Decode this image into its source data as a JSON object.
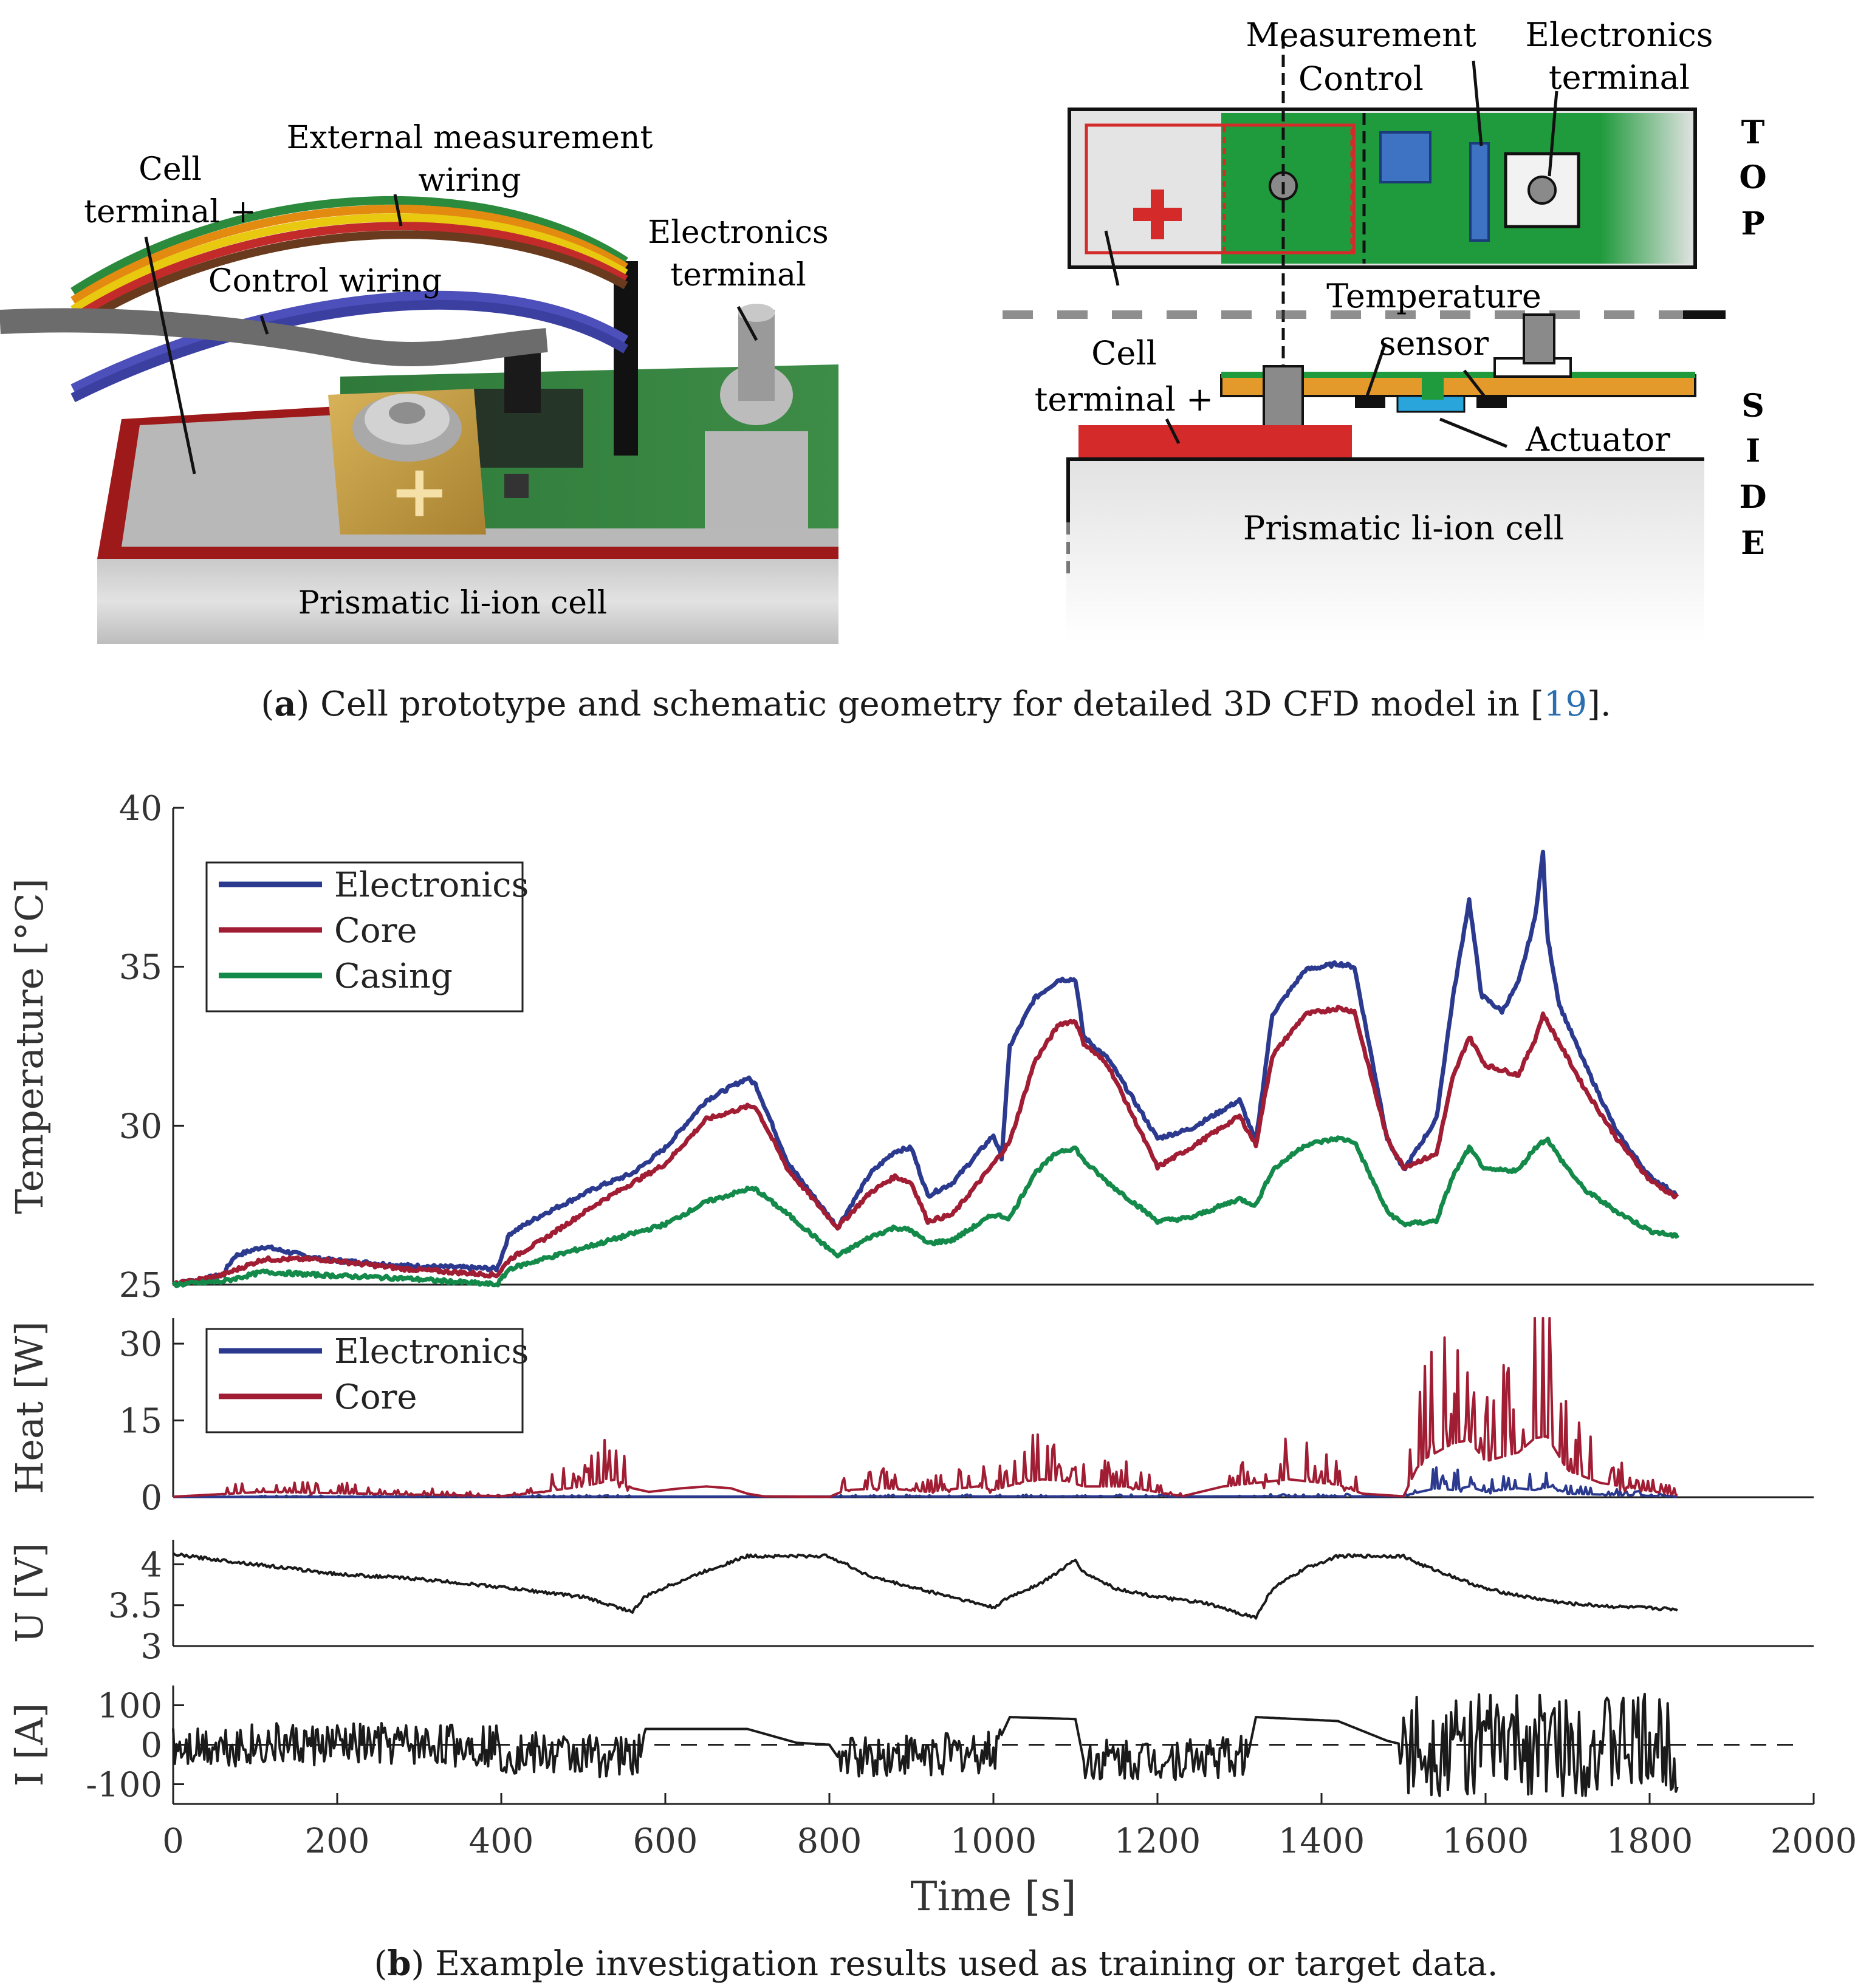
{
  "photo": {
    "labels": {
      "cell_terminal": [
        "Cell",
        "terminal +"
      ],
      "external_wiring": [
        "External measurement",
        "wiring"
      ],
      "control_wiring": "Control wiring",
      "electronics_terminal": [
        "Electronics",
        "terminal"
      ],
      "cell": "Prismatic li-ion cell"
    }
  },
  "schematic": {
    "labels": {
      "measurement": "Measurement",
      "control": "Control",
      "electronics_terminal": [
        "Electronics",
        "terminal"
      ],
      "temperature_sensor": [
        "Temperature",
        "sensor"
      ],
      "cell_terminal": [
        "Cell",
        "terminal +"
      ],
      "actuator": "Actuator",
      "cell": "Prismatic li-ion cell",
      "top_letters": [
        "T",
        "O",
        "P"
      ],
      "side_letters": [
        "S",
        "I",
        "D",
        "E"
      ]
    }
  },
  "caption_a": {
    "label": "a",
    "text": " Cell prototype and schematic geometry for detailed 3D CFD model in [",
    "ref": "19",
    "end": "]."
  },
  "caption_b": {
    "label": "b",
    "text": " Example investigation results used as training or target data."
  },
  "colors": {
    "electronics": "#2b3a8f",
    "core": "#a11d34",
    "casing": "#13894a",
    "signal": "#1a1a1a",
    "board": "#1f9a3c",
    "copper": "#e39a2a",
    "terminal_red": "#d42a2a",
    "chip_blue": "#3e73c4",
    "actuator_blue": "#2aa5dc"
  },
  "chart_data": [
    {
      "type": "line",
      "ylabel": "Temperature [°C]",
      "ylim": [
        25,
        40
      ],
      "yticks": [
        25,
        30,
        35,
        40
      ],
      "legend_position": "top-left",
      "series": [
        {
          "name": "Electronics",
          "x": [
            0,
            60,
            75,
            110,
            180,
            280,
            395,
            410,
            450,
            520,
            560,
            600,
            650,
            700,
            710,
            750,
            810,
            850,
            880,
            900,
            920,
            950,
            1000,
            1010,
            1020,
            1050,
            1080,
            1100,
            1110,
            1140,
            1200,
            1240,
            1300,
            1320,
            1340,
            1380,
            1420,
            1440,
            1480,
            1500,
            1540,
            1560,
            1580,
            1595,
            1620,
            1640,
            1660,
            1670,
            1675,
            1690,
            1720,
            1760,
            1800,
            1835
          ],
          "y": [
            25,
            25.3,
            25.9,
            26.2,
            25.8,
            25.6,
            25.5,
            26.6,
            27.2,
            28.1,
            28.5,
            29.3,
            30.8,
            31.5,
            31.3,
            28.8,
            26.8,
            28.5,
            29.2,
            29.3,
            27.8,
            28.2,
            29.7,
            29,
            32.5,
            34.0,
            34.6,
            34.6,
            32.8,
            32.1,
            29.6,
            29.9,
            30.8,
            29.5,
            33.5,
            34.9,
            35.1,
            35,
            29.6,
            28.6,
            30.2,
            34,
            37.1,
            34.1,
            33.6,
            34.5,
            36.5,
            38.6,
            36,
            33.8,
            32,
            29.8,
            28.4,
            27.8
          ]
        },
        {
          "name": "Core",
          "x": [
            0,
            60,
            110,
            180,
            280,
            395,
            410,
            450,
            520,
            560,
            600,
            650,
            700,
            710,
            750,
            810,
            850,
            880,
            900,
            920,
            950,
            1000,
            1020,
            1050,
            1080,
            1100,
            1110,
            1140,
            1200,
            1240,
            1300,
            1320,
            1340,
            1380,
            1420,
            1440,
            1480,
            1500,
            1540,
            1560,
            1580,
            1600,
            1640,
            1660,
            1670,
            1690,
            1720,
            1760,
            1800,
            1835
          ],
          "y": [
            25,
            25.3,
            25.8,
            25.8,
            25.5,
            25.3,
            25.8,
            26.4,
            27.6,
            28.2,
            28.8,
            30.2,
            30.6,
            30.6,
            28.6,
            26.8,
            27.9,
            28.4,
            28.2,
            27.0,
            27.2,
            28.8,
            29.5,
            32.0,
            33.2,
            33.3,
            32.6,
            31.9,
            28.7,
            29.3,
            30.3,
            29.4,
            32.2,
            33.5,
            33.7,
            33.6,
            29.6,
            28.7,
            29.1,
            31.5,
            32.8,
            31.9,
            31.6,
            32.7,
            33.5,
            32.6,
            31.2,
            29.6,
            28.3,
            27.7
          ]
        },
        {
          "name": "Casing",
          "x": [
            0,
            60,
            110,
            180,
            280,
            395,
            410,
            450,
            520,
            560,
            600,
            650,
            700,
            710,
            750,
            810,
            850,
            880,
            900,
            920,
            950,
            1000,
            1020,
            1050,
            1080,
            1100,
            1110,
            1140,
            1200,
            1240,
            1300,
            1320,
            1340,
            1380,
            1420,
            1440,
            1480,
            1500,
            1540,
            1560,
            1580,
            1600,
            1640,
            1660,
            1675,
            1690,
            1720,
            1760,
            1800,
            1835
          ],
          "y": [
            25,
            25.1,
            25.4,
            25.3,
            25.2,
            25.0,
            25.5,
            25.8,
            26.3,
            26.6,
            26.9,
            27.6,
            28.0,
            28.0,
            27.2,
            25.9,
            26.5,
            26.8,
            26.7,
            26.3,
            26.4,
            27.2,
            27.1,
            28.5,
            29.2,
            29.3,
            28.9,
            28.2,
            27.0,
            27.1,
            27.7,
            27.5,
            28.6,
            29.4,
            29.6,
            29.5,
            27.3,
            26.9,
            27.0,
            28.4,
            29.3,
            28.6,
            28.6,
            29.3,
            29.6,
            29.0,
            28.0,
            27.3,
            26.7,
            26.5
          ]
        }
      ]
    },
    {
      "type": "line",
      "ylabel": "Heat [W]",
      "ylim": [
        0,
        35
      ],
      "yticks": [
        0,
        15,
        30
      ],
      "legend_position": "top-left",
      "series": [
        {
          "name": "Electronics",
          "x": [
            0,
            400,
            1500,
            1520,
            1540,
            1560,
            1580,
            1600,
            1640,
            1660,
            1680,
            1700,
            1835
          ],
          "y": [
            0.2,
            0.3,
            0.5,
            3,
            5,
            4,
            6,
            3,
            5,
            4,
            6,
            2,
            0.3
          ]
        },
        {
          "name": "Core",
          "x": [
            0,
            70,
            110,
            400,
            450,
            500,
            540,
            560,
            580,
            620,
            650,
            680,
            700,
            720,
            800,
            820,
            870,
            920,
            980,
            1000,
            1040,
            1060,
            1090,
            1110,
            1160,
            1230,
            1280,
            1320,
            1360,
            1380,
            1420,
            1450,
            1500,
            1520,
            1540,
            1560,
            1580,
            1600,
            1640,
            1660,
            1675,
            1700,
            1740,
            1780,
            1835
          ],
          "y": [
            0.3,
            2,
            3,
            0.6,
            3,
            6,
            10,
            5,
            3,
            5,
            6,
            5,
            2,
            0.5,
            0.2,
            4,
            5,
            3,
            6,
            4,
            9,
            10,
            9,
            6,
            6,
            0.5,
            6,
            8,
            10,
            9,
            7,
            2,
            0.5,
            20,
            25,
            30,
            32,
            20,
            25,
            33,
            34,
            15,
            8,
            5,
            1
          ]
        }
      ]
    },
    {
      "type": "line",
      "ylabel": "U [V]",
      "ylim": [
        3,
        4.3
      ],
      "yticks": [
        3,
        3.5,
        4
      ],
      "series": [
        {
          "name": "",
          "x": [
            0,
            100,
            200,
            300,
            400,
            500,
            560,
            575,
            600,
            650,
            700,
            800,
            850,
            900,
            950,
            1000,
            1020,
            1060,
            1100,
            1110,
            1150,
            1200,
            1260,
            1300,
            1320,
            1340,
            1380,
            1420,
            1500,
            1520,
            1560,
            1600,
            1650,
            1700,
            1760,
            1835
          ],
          "y": [
            4.12,
            4.0,
            3.88,
            3.82,
            3.72,
            3.6,
            3.42,
            3.6,
            3.72,
            3.92,
            4.1,
            4.1,
            3.85,
            3.72,
            3.6,
            3.47,
            3.6,
            3.78,
            4.05,
            3.9,
            3.7,
            3.6,
            3.52,
            3.4,
            3.35,
            3.7,
            3.95,
            4.1,
            4.1,
            4.0,
            3.85,
            3.7,
            3.6,
            3.52,
            3.48,
            3.45
          ]
        }
      ]
    },
    {
      "type": "line",
      "ylabel": "I [A]",
      "xlabel": "Time [s]",
      "xlim": [
        0,
        2000
      ],
      "xticks": [
        0,
        200,
        400,
        600,
        800,
        1000,
        1200,
        1400,
        1600,
        1800,
        2000
      ],
      "ylim": [
        -150,
        150
      ],
      "yticks": [
        -100,
        0,
        100
      ],
      "series": [
        {
          "name": "",
          "x": [
            0,
            395,
            400,
            570,
            575,
            700,
            760,
            800,
            810,
            1000,
            1020,
            1100,
            1110,
            1310,
            1320,
            1420,
            1480,
            1500,
            1835
          ],
          "y": [
            0,
            0,
            -20,
            -30,
            40,
            40,
            5,
            0,
            -30,
            -20,
            70,
            65,
            -40,
            -30,
            70,
            60,
            10,
            0,
            0
          ]
        }
      ],
      "reference_line": 0
    }
  ]
}
